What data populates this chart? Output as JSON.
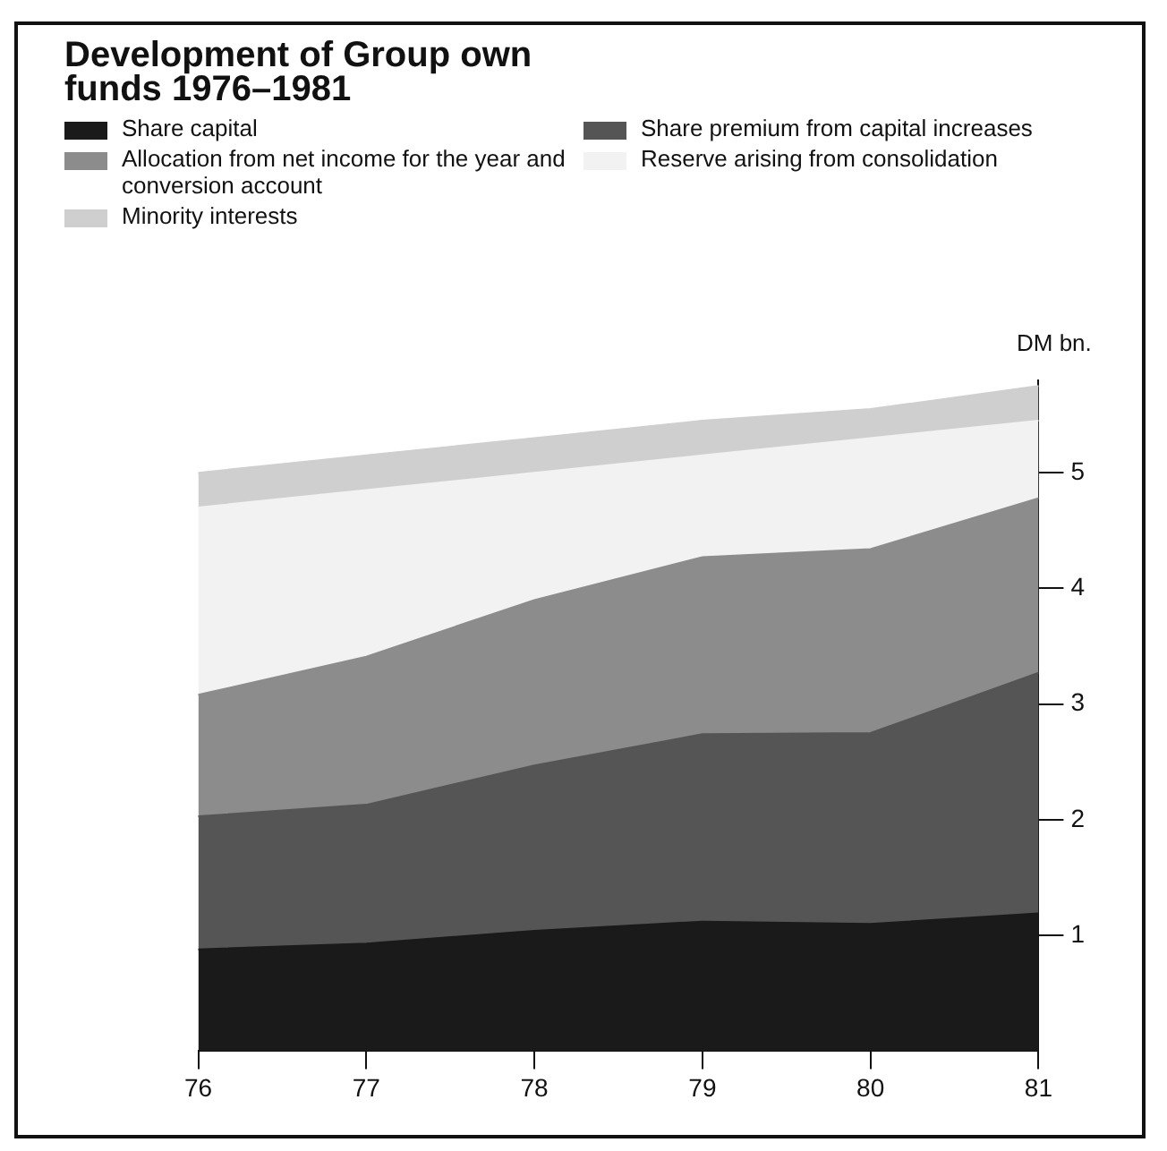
{
  "chart_data": {
    "type": "area",
    "stacked": true,
    "title": "Development of Group own funds 1976–1981",
    "ylabel": "DM bn.",
    "categories": [
      "76",
      "77",
      "78",
      "79",
      "80",
      "81"
    ],
    "series": [
      {
        "name": "Share capital",
        "color": "#1a1a1a",
        "values": [
          0.88,
          0.93,
          1.04,
          1.12,
          1.1,
          1.19
        ]
      },
      {
        "name": "Share premium from capital increases",
        "color": "#555555",
        "values": [
          1.15,
          1.2,
          1.43,
          1.62,
          1.65,
          2.08
        ]
      },
      {
        "name": "Allocation from net income for the year and conversion account",
        "color": "#8c8c8c",
        "values": [
          1.05,
          1.28,
          1.43,
          1.53,
          1.59,
          1.51
        ]
      },
      {
        "name": "Reserve arising from consolidation",
        "color": "#f2f2f2",
        "values": [
          1.62,
          1.44,
          1.1,
          0.88,
          0.96,
          0.67
        ]
      },
      {
        "name": "Minority interests",
        "color": "#cfcfcf",
        "values": [
          0.3,
          0.3,
          0.3,
          0.3,
          0.25,
          0.3
        ]
      }
    ],
    "ylim": [
      0,
      5.8
    ],
    "yticks": [
      1,
      2,
      3,
      4,
      5
    ],
    "grid": false,
    "legend": "top"
  }
}
